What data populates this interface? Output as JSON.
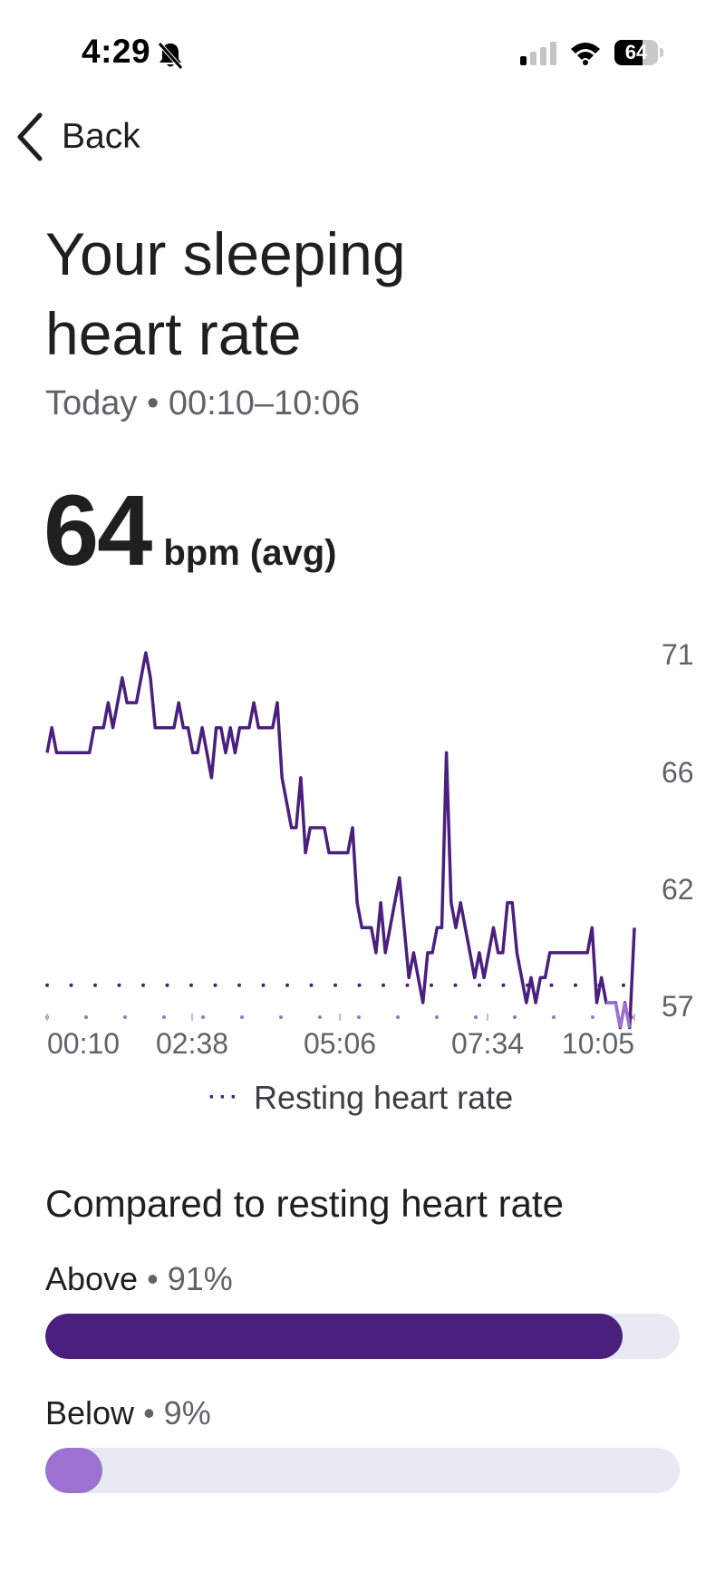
{
  "status": {
    "time": "4:29",
    "battery_level": "64"
  },
  "nav": {
    "back_label": "Back"
  },
  "header": {
    "title_line1": "Your sleeping",
    "title_line2": "heart rate",
    "subtitle": "Today • 00:10–10:06",
    "avg_value": "64",
    "avg_unit": "bpm (avg)"
  },
  "chart_data": {
    "type": "line",
    "x_ticks": [
      "00:10",
      "02:38",
      "05:06",
      "07:34",
      "10:05"
    ],
    "y_ticks": [
      71,
      66,
      62,
      57
    ],
    "ylim": [
      57,
      71
    ],
    "series": [
      {
        "color": "#4a1f7d",
        "values": [
          67,
          68,
          67,
          67,
          67,
          67,
          67,
          67,
          67,
          67,
          68,
          68,
          68,
          69,
          68,
          69,
          70,
          69,
          69,
          69,
          70,
          71,
          70,
          68,
          68,
          68,
          68,
          68,
          69,
          68,
          68,
          67,
          67,
          68,
          67,
          66,
          68,
          68,
          67,
          68,
          67,
          68,
          68,
          68,
          69,
          68,
          68,
          68,
          68,
          69,
          66,
          65,
          64,
          64,
          66,
          63,
          64,
          64,
          64,
          64,
          63,
          63,
          63,
          63,
          63,
          64,
          61,
          60,
          60,
          60,
          59,
          61,
          59,
          60,
          61,
          62,
          60,
          58,
          59,
          58,
          57,
          59,
          59,
          60,
          60,
          67,
          61,
          60,
          61,
          60,
          59,
          58,
          59,
          58,
          59,
          60,
          59,
          59,
          61,
          61,
          59,
          58,
          57,
          58,
          57,
          58,
          58,
          59,
          59,
          59,
          59,
          59,
          59,
          59,
          59,
          59,
          60,
          57,
          58,
          57,
          57,
          57,
          56,
          57,
          56,
          60
        ]
      }
    ],
    "resting_heart_rate": 57.7,
    "below_color": "#9b72cf",
    "legend": "Resting heart rate"
  },
  "comparison": {
    "title": "Compared to resting heart rate",
    "above": {
      "label": "Above",
      "pct_text": "• 91%",
      "value": 0.91,
      "color": "#4a1f7d"
    },
    "below": {
      "label": "Below",
      "pct_text": "• 9%",
      "value": 0.09,
      "color": "#9b72cf"
    }
  }
}
